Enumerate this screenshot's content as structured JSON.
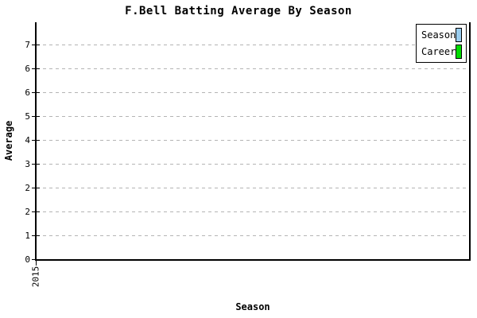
{
  "title": "F.Bell Batting Average By Season",
  "axes": {
    "y_label": "Average",
    "x_label": "Season",
    "x_tick_label": "2015",
    "y_tick_labels_top_to_bottom": [
      "7",
      "6",
      "6",
      "5",
      "4",
      "3",
      "2",
      "2",
      "1",
      "0"
    ]
  },
  "legend": {
    "items": [
      {
        "label": "Season",
        "color": "#99CCEE"
      },
      {
        "label": "Career",
        "color": "#00DD00"
      }
    ]
  },
  "colors": {
    "axis": "#000000",
    "grid": "#b4b4b4",
    "background": "#ffffff",
    "season_series": "#99CCEE",
    "career_series": "#00DD00"
  },
  "chart_data": {
    "type": "bar",
    "title": "F.Bell Batting Average By Season",
    "xlabel": "Season",
    "ylabel": "Average",
    "categories": [
      "2015"
    ],
    "series": [
      {
        "name": "Season",
        "color": "#99CCEE",
        "values": [
          0
        ]
      },
      {
        "name": "Career",
        "color": "#00DD00",
        "values": [
          0
        ]
      }
    ],
    "ylim": [
      0,
      7.2
    ],
    "y_ticks_displayed_top_to_bottom": [
      "7",
      "6",
      "6",
      "5",
      "4",
      "3",
      "2",
      "2",
      "1",
      "0"
    ],
    "grid": "horizontal-dashed",
    "legend_position": "top-right",
    "notes": "plot area is empty; no visible bars above the baseline"
  }
}
